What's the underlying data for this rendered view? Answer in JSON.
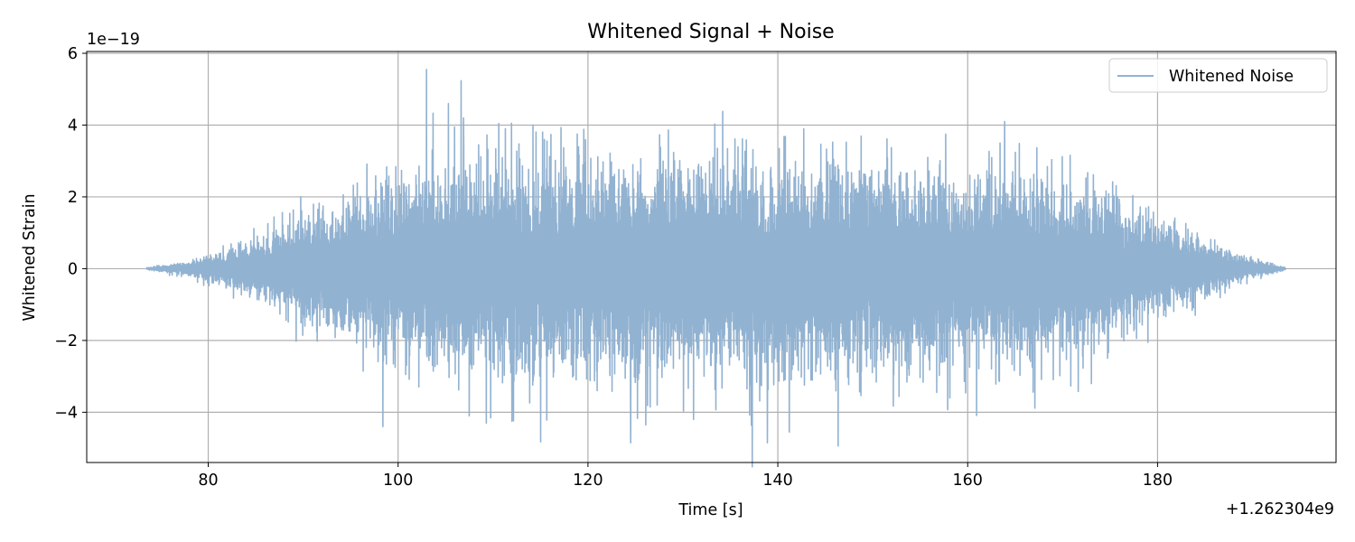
{
  "chart_data": {
    "type": "line",
    "title": "Whitened Signal + Noise",
    "xlabel": "Time [s]",
    "ylabel": "Whitened Strain",
    "x_offset_label": "+1.262304e9",
    "y_scale_label": "1e−19",
    "xlim": [
      67.2,
      198.8
    ],
    "ylim": [
      -5.4,
      6.05
    ],
    "x_ticks": [
      80,
      100,
      120,
      140,
      160,
      180
    ],
    "y_ticks": [
      -4,
      -2,
      0,
      2,
      4,
      6
    ],
    "x_tick_labels": [
      "80",
      "100",
      "120",
      "140",
      "160",
      "180"
    ],
    "y_tick_labels": [
      "−4",
      "−2",
      "0",
      "2",
      "4",
      "6"
    ],
    "grid": true,
    "legend_position": "top-right",
    "series": [
      {
        "name": "Whitened Noise",
        "color": "#92b2d1",
        "x_range": [
          73.5,
          193.5
        ],
        "envelope": [
          {
            "x": 73.5,
            "amp": 0.03
          },
          {
            "x": 78,
            "amp": 0.2
          },
          {
            "x": 82,
            "amp": 0.5
          },
          {
            "x": 86,
            "amp": 0.95
          },
          {
            "x": 90,
            "amp": 1.5
          },
          {
            "x": 95,
            "amp": 2.0
          },
          {
            "x": 100,
            "amp": 2.5
          },
          {
            "x": 110,
            "amp": 2.8
          },
          {
            "x": 120,
            "amp": 2.9
          },
          {
            "x": 133,
            "amp": 2.95
          },
          {
            "x": 150,
            "amp": 2.8
          },
          {
            "x": 165,
            "amp": 2.6
          },
          {
            "x": 172,
            "amp": 2.2
          },
          {
            "x": 178,
            "amp": 1.6
          },
          {
            "x": 183,
            "amp": 1.0
          },
          {
            "x": 187,
            "amp": 0.55
          },
          {
            "x": 190,
            "amp": 0.28
          },
          {
            "x": 193.5,
            "amp": 0.03
          }
        ],
        "peaks": [
          {
            "x": 103.0,
            "y": 5.55
          },
          {
            "x": 105.3,
            "y": 4.6
          },
          {
            "x": 106.9,
            "y": 4.2
          },
          {
            "x": 111.3,
            "y": 3.9
          },
          {
            "x": 114.2,
            "y": 4.0
          },
          {
            "x": 134.2,
            "y": 4.38
          },
          {
            "x": 163.9,
            "y": 4.1
          },
          {
            "x": 98.4,
            "y": -4.4
          },
          {
            "x": 124.5,
            "y": -4.85
          },
          {
            "x": 126.1,
            "y": -4.35
          },
          {
            "x": 138.9,
            "y": -4.85
          },
          {
            "x": 141.2,
            "y": -4.55
          },
          {
            "x": 107.5,
            "y": -4.1
          },
          {
            "x": 112.0,
            "y": -4.25
          }
        ]
      }
    ]
  }
}
